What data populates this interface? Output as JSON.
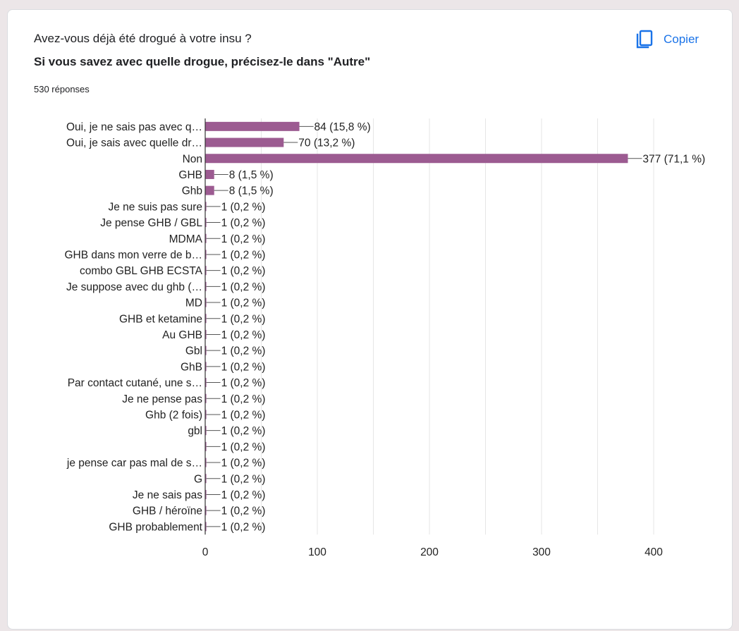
{
  "header": {
    "title": "Avez-vous déjà été drogué à votre insu ?",
    "subtitle": "Si vous savez avec quelle drogue, précisez-le dans \"Autre\"",
    "responses": "530 réponses",
    "copy_label": "Copier",
    "copy_icon": "copy-icon"
  },
  "colors": {
    "bar": "#9c5b91",
    "accent": "#1a73e8",
    "grid": "#e6e6e6",
    "axis": "#333333"
  },
  "chart_data": {
    "type": "bar",
    "orientation": "horizontal",
    "categories": [
      "Oui, je ne sais pas avec q…",
      "Oui, je sais avec quelle dr…",
      "Non",
      "GHB",
      "Ghb",
      "Je ne suis pas sure",
      "Je pense GHB / GBL",
      "MDMA",
      "GHB dans mon verre de b…",
      "combo GBL GHB ECSTA",
      "Je suppose avec du ghb (…",
      "MD",
      "GHB et ketamine",
      "Au GHB",
      "Gbl",
      "GhB",
      "Par contact cutané, une s…",
      "Je ne pense pas",
      "Ghb (2 fois)",
      "gbl",
      "",
      "je pense car pas mal de s…",
      "G",
      "Je ne sais pas",
      "GHB / héroïne",
      "GHB probablement"
    ],
    "values": [
      84,
      70,
      377,
      8,
      8,
      1,
      1,
      1,
      1,
      1,
      1,
      1,
      1,
      1,
      1,
      1,
      1,
      1,
      1,
      1,
      1,
      1,
      1,
      1,
      1,
      1
    ],
    "data_labels": [
      "84 (15,8 %)",
      "70 (13,2 %)",
      "377 (71,1 %)",
      "8 (1,5 %)",
      "8 (1,5 %)",
      "1 (0,2 %)",
      "1 (0,2 %)",
      "1 (0,2 %)",
      "1 (0,2 %)",
      "1 (0,2 %)",
      "1 (0,2 %)",
      "1 (0,2 %)",
      "1 (0,2 %)",
      "1 (0,2 %)",
      "1 (0,2 %)",
      "1 (0,2 %)",
      "1 (0,2 %)",
      "1 (0,2 %)",
      "1 (0,2 %)",
      "1 (0,2 %)",
      "1 (0,2 %)",
      "1 (0,2 %)",
      "1 (0,2 %)",
      "1 (0,2 %)",
      "1 (0,2 %)",
      "1 (0,2 %)"
    ],
    "xlim": [
      0,
      400
    ],
    "x_ticks": [
      0,
      100,
      200,
      300,
      400
    ],
    "grid": true,
    "xlabel": "",
    "ylabel": ""
  }
}
